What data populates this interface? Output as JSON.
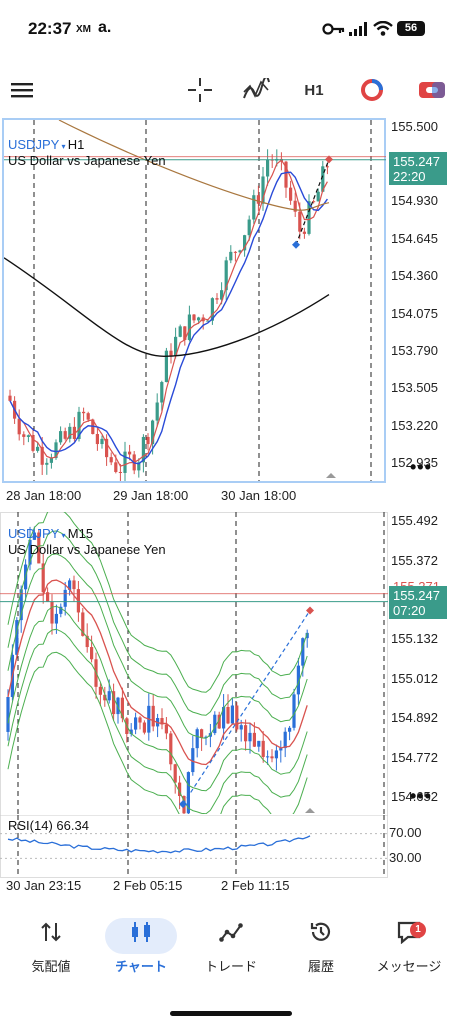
{
  "status": {
    "time": "22:37",
    "carrier1": "XM",
    "carrier2": "a.",
    "battery": "56"
  },
  "toolbar": {
    "timeframe": "H1"
  },
  "chart1": {
    "symbol": "USDJPY",
    "timeframe": "H1",
    "description": "US Dollar vs Japanese Yen",
    "price_axis": [
      "155.500",
      "154.930",
      "154.645",
      "154.360",
      "154.075",
      "153.790",
      "153.505",
      "153.220",
      "152.935"
    ],
    "current_price": "155.247",
    "countdown": "22:20",
    "time_labels": [
      "28 Jan 18:00",
      "29 Jan 18:00",
      "30 Jan 18:00"
    ]
  },
  "chart2": {
    "symbol": "USDJPY",
    "timeframe": "M15",
    "description": "US Dollar vs Japanese Yen",
    "price_axis": [
      "155.492",
      "155.372",
      "155.132",
      "155.012",
      "154.892",
      "154.772",
      "154.652"
    ],
    "ask_price": "155.271",
    "current_price": "155.247",
    "countdown": "07:20",
    "rsi_label": "RSI(14) 66.34",
    "rsi_axis": [
      "70.00",
      "30.00"
    ],
    "time_labels": [
      "30 Jan 23:15",
      "2 Feb 05:15",
      "2 Feb 11:15"
    ]
  },
  "chart_data": [
    {
      "type": "line",
      "title": "USDJPY H1",
      "ylim": [
        152.8,
        155.55
      ],
      "yticks": [
        155.5,
        154.93,
        154.645,
        154.36,
        154.075,
        153.79,
        153.505,
        153.22,
        152.935
      ],
      "current": 155.247
    },
    {
      "type": "line",
      "title": "USDJPY M15",
      "ylim": [
        154.6,
        155.52
      ],
      "yticks": [
        155.492,
        155.372,
        155.132,
        155.012,
        154.892,
        154.772,
        154.652
      ],
      "current": 155.247,
      "rsi": 66.34
    }
  ],
  "nav": {
    "items": [
      {
        "label": "気配値",
        "icon": "quotes-icon"
      },
      {
        "label": "チャート",
        "icon": "chart-icon"
      },
      {
        "label": "トレード",
        "icon": "trade-icon"
      },
      {
        "label": "履歴",
        "icon": "history-icon"
      },
      {
        "label": "メッセージ",
        "icon": "messages-icon"
      }
    ],
    "badge": "1"
  }
}
